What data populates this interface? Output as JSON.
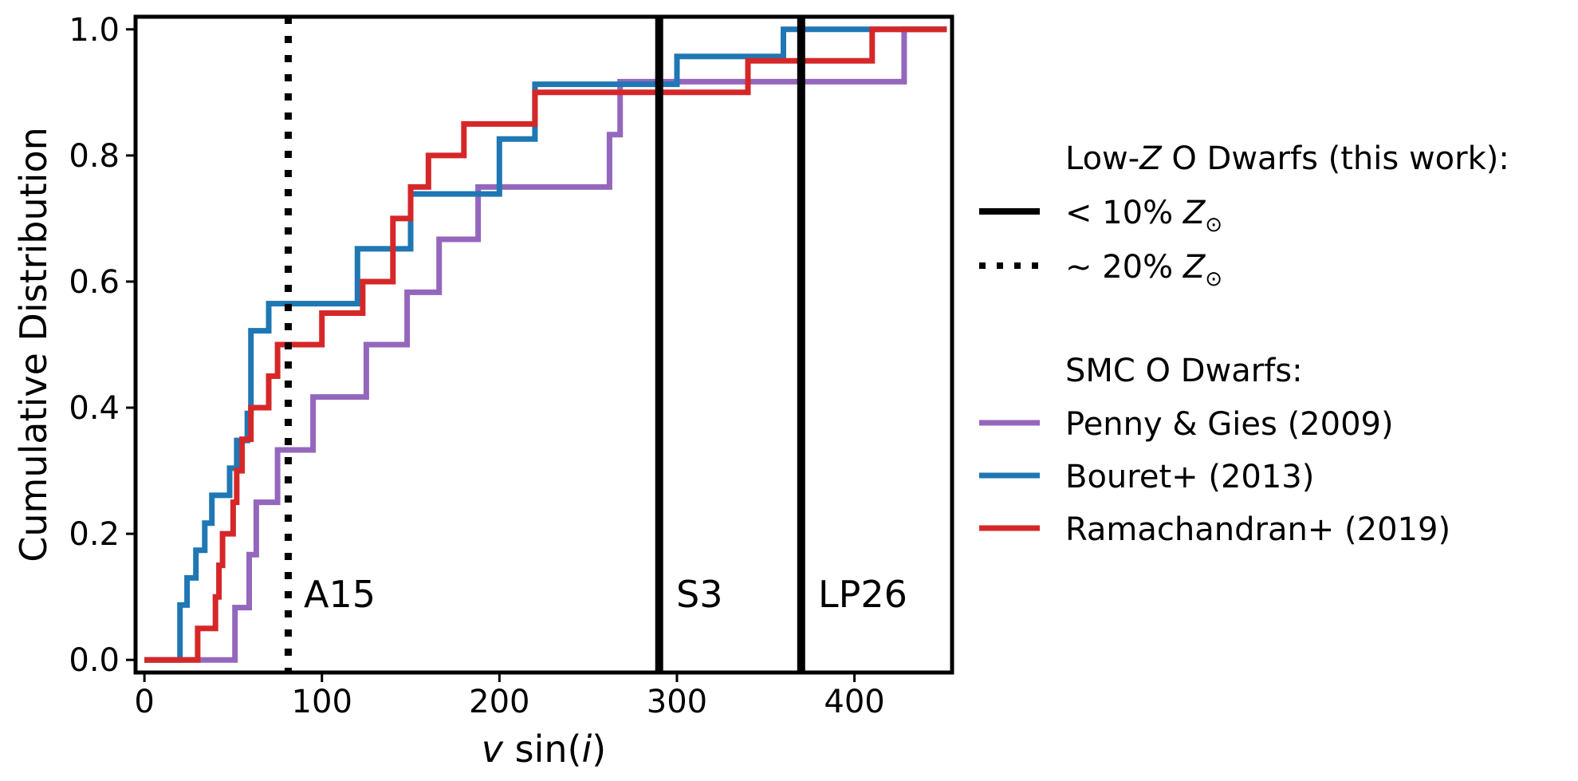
{
  "chart_data": {
    "type": "line",
    "title": "",
    "xlabel_parts": [
      "v",
      " sin(",
      "i",
      ")"
    ],
    "ylabel": "Cumulative Distribution",
    "xlim": [
      -5,
      455
    ],
    "ylim": [
      -0.02,
      1.02
    ],
    "xticks": [
      0,
      100,
      200,
      300,
      400
    ],
    "xtick_labels": [
      "0",
      "100",
      "200",
      "300",
      "400"
    ],
    "yticks": [
      0.0,
      0.2,
      0.4,
      0.6,
      0.8,
      1.0
    ],
    "ytick_labels": [
      "0.0",
      "0.2",
      "0.4",
      "0.6",
      "0.8",
      "1.0"
    ],
    "grid": false,
    "legend_position": "outside-right",
    "reference_lines": [
      {
        "name": "A15",
        "x": 81,
        "style": "dotted",
        "color": "#000000",
        "label": "A15"
      },
      {
        "name": "S3",
        "x": 290,
        "style": "solid",
        "color": "#000000",
        "label": "S3"
      },
      {
        "name": "LP26",
        "x": 370,
        "style": "solid",
        "color": "#000000",
        "label": "LP26"
      }
    ],
    "series": [
      {
        "name": "Penny & Gies (2009)",
        "key": "penny-gies",
        "color": "#9467bd",
        "steps": [
          [
            0,
            0.0
          ],
          [
            51,
            0.0
          ],
          [
            51,
            0.083
          ],
          [
            59,
            0.083
          ],
          [
            59,
            0.167
          ],
          [
            63,
            0.167
          ],
          [
            63,
            0.25
          ],
          [
            75,
            0.25
          ],
          [
            75,
            0.333
          ],
          [
            95,
            0.333
          ],
          [
            95,
            0.417
          ],
          [
            125,
            0.417
          ],
          [
            125,
            0.5
          ],
          [
            148,
            0.5
          ],
          [
            148,
            0.583
          ],
          [
            166,
            0.583
          ],
          [
            166,
            0.667
          ],
          [
            188,
            0.667
          ],
          [
            188,
            0.75
          ],
          [
            262,
            0.75
          ],
          [
            262,
            0.833
          ],
          [
            268,
            0.833
          ],
          [
            268,
            0.917
          ],
          [
            428,
            0.917
          ],
          [
            428,
            1.0
          ],
          [
            452,
            1.0
          ]
        ]
      },
      {
        "name": "Bouret+ (2013)",
        "key": "bouret",
        "color": "#1f77b4",
        "steps": [
          [
            0,
            0.0
          ],
          [
            20,
            0.0
          ],
          [
            20,
            0.087
          ],
          [
            24,
            0.087
          ],
          [
            24,
            0.13
          ],
          [
            29,
            0.13
          ],
          [
            29,
            0.174
          ],
          [
            34,
            0.174
          ],
          [
            34,
            0.217
          ],
          [
            38,
            0.217
          ],
          [
            38,
            0.261
          ],
          [
            48,
            0.261
          ],
          [
            48,
            0.304
          ],
          [
            52,
            0.304
          ],
          [
            52,
            0.348
          ],
          [
            58,
            0.348
          ],
          [
            58,
            0.391
          ],
          [
            60,
            0.391
          ],
          [
            60,
            0.522
          ],
          [
            70,
            0.522
          ],
          [
            70,
            0.565
          ],
          [
            120,
            0.565
          ],
          [
            120,
            0.652
          ],
          [
            150,
            0.652
          ],
          [
            150,
            0.739
          ],
          [
            200,
            0.739
          ],
          [
            200,
            0.826
          ],
          [
            220,
            0.826
          ],
          [
            220,
            0.913
          ],
          [
            300,
            0.913
          ],
          [
            300,
            0.957
          ],
          [
            360,
            0.957
          ],
          [
            360,
            1.0
          ],
          [
            452,
            1.0
          ]
        ]
      },
      {
        "name": "Ramachandran+ (2019)",
        "key": "ramachandran",
        "color": "#d62728",
        "steps": [
          [
            0,
            0.0
          ],
          [
            30,
            0.0
          ],
          [
            30,
            0.05
          ],
          [
            40,
            0.05
          ],
          [
            40,
            0.1
          ],
          [
            42,
            0.1
          ],
          [
            42,
            0.15
          ],
          [
            44,
            0.15
          ],
          [
            44,
            0.2
          ],
          [
            50,
            0.2
          ],
          [
            50,
            0.25
          ],
          [
            52,
            0.25
          ],
          [
            52,
            0.3
          ],
          [
            55,
            0.3
          ],
          [
            55,
            0.35
          ],
          [
            60,
            0.35
          ],
          [
            60,
            0.4
          ],
          [
            70,
            0.4
          ],
          [
            70,
            0.45
          ],
          [
            75,
            0.45
          ],
          [
            75,
            0.5
          ],
          [
            100,
            0.5
          ],
          [
            100,
            0.55
          ],
          [
            123,
            0.55
          ],
          [
            123,
            0.6
          ],
          [
            140,
            0.6
          ],
          [
            140,
            0.7
          ],
          [
            150,
            0.7
          ],
          [
            150,
            0.75
          ],
          [
            160,
            0.75
          ],
          [
            160,
            0.8
          ],
          [
            180,
            0.8
          ],
          [
            180,
            0.85
          ],
          [
            220,
            0.85
          ],
          [
            220,
            0.9
          ],
          [
            340,
            0.9
          ],
          [
            340,
            0.95
          ],
          [
            410,
            0.95
          ],
          [
            410,
            1.0
          ],
          [
            452,
            1.0
          ]
        ]
      }
    ],
    "legend": {
      "group1_title_parts": [
        "Low-",
        "Z",
        " O Dwarfs (this work):"
      ],
      "solid_label_parts": [
        "< 10% ",
        "Z",
        "⊙"
      ],
      "dotted_label_parts": [
        "~ 20% ",
        "Z",
        "⊙"
      ],
      "group2_title": "SMC O Dwarfs:",
      "entries": [
        "Penny & Gies (2009)",
        "Bouret+ (2013)",
        "Ramachandran+ (2019)"
      ]
    }
  }
}
